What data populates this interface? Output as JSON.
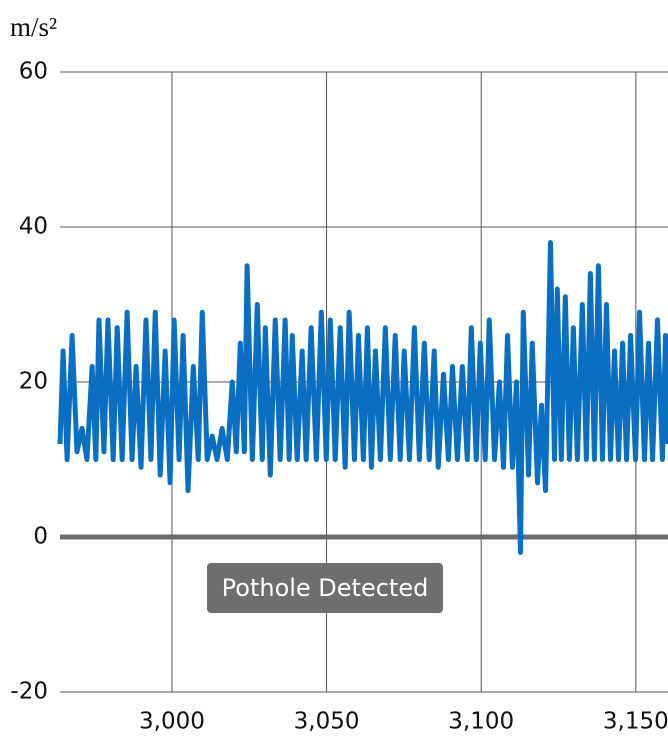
{
  "chart_data": {
    "type": "line",
    "y_unit": "m/s²",
    "annotation": "Pothole Detected",
    "color": "#0a6fc2",
    "grid": true,
    "xlim": [
      2963.8,
      3160.4
    ],
    "ylim": [
      -20,
      60
    ],
    "xticks": [
      {
        "value": 3000,
        "label": "3,000"
      },
      {
        "value": 3050,
        "label": "3,050"
      },
      {
        "value": 3100,
        "label": "3,100"
      },
      {
        "value": 3150,
        "label": "3,150"
      }
    ],
    "yticks": [
      60,
      40,
      20,
      0,
      -20
    ],
    "x": [
      2963.8,
      2964.8,
      2966.1,
      2967.7,
      2969.3,
      2970.9,
      2972.5,
      2974.2,
      2975.4,
      2976.4,
      2978.0,
      2979.3,
      2981.0,
      2982.3,
      2983.9,
      2985.5,
      2987.1,
      2988.4,
      2990.0,
      2991.6,
      2993.2,
      2994.6,
      2996.2,
      2997.8,
      2999.4,
      3000.7,
      3002.3,
      3003.6,
      3005.2,
      3006.9,
      3008.5,
      3009.8,
      3011.4,
      3013.0,
      3014.6,
      3016.2,
      3017.9,
      3019.5,
      3020.8,
      3022.1,
      3023.4,
      3024.3,
      3026.0,
      3027.6,
      3029.2,
      3030.2,
      3031.8,
      3033.4,
      3035.0,
      3036.6,
      3037.9,
      3038.9,
      3040.5,
      3042.1,
      3043.4,
      3045.0,
      3046.7,
      3048.3,
      3049.9,
      3051.2,
      3052.8,
      3054.4,
      3056.0,
      3057.3,
      3059.0,
      3060.3,
      3061.9,
      3063.2,
      3064.5,
      3065.8,
      3067.4,
      3069.0,
      3070.6,
      3072.2,
      3073.8,
      3075.1,
      3076.8,
      3078.4,
      3080.0,
      3081.6,
      3083.2,
      3084.8,
      3086.1,
      3087.8,
      3089.4,
      3090.7,
      3092.3,
      3093.9,
      3095.5,
      3096.8,
      3098.4,
      3099.7,
      3101.3,
      3102.6,
      3104.3,
      3105.9,
      3107.2,
      3108.5,
      3110.1,
      3111.4,
      3112.7,
      3113.6,
      3115.3,
      3116.5,
      3118.2,
      3119.5,
      3120.8,
      3122.4,
      3123.7,
      3124.6,
      3125.9,
      3127.2,
      3128.5,
      3129.8,
      3131.1,
      3132.7,
      3134.0,
      3135.3,
      3136.6,
      3137.9,
      3139.2,
      3140.5,
      3141.8,
      3143.1,
      3144.4,
      3145.7,
      3147.0,
      3148.3,
      3149.9,
      3151.2,
      3152.8,
      3154.1,
      3155.4,
      3157.0,
      3158.6,
      3159.6,
      3160.4
    ],
    "values": [
      12,
      24,
      10,
      26,
      11,
      14,
      10,
      22,
      10,
      28,
      11,
      28,
      10,
      27,
      10,
      29,
      10,
      22,
      9,
      28,
      10,
      29,
      8,
      24,
      7,
      28,
      10,
      26,
      6,
      22,
      10,
      29,
      10,
      13,
      10,
      14,
      10,
      20,
      11,
      25,
      11,
      35,
      10,
      30,
      10,
      27,
      8,
      28,
      10,
      28,
      10,
      26,
      10,
      24,
      10,
      27,
      10,
      29,
      10,
      28,
      10,
      27,
      9,
      29,
      10,
      26,
      10,
      27,
      9,
      24,
      10,
      27,
      10,
      26,
      10,
      24,
      10,
      27,
      10,
      25,
      10,
      24,
      9,
      21,
      10,
      22,
      10,
      22,
      10,
      27,
      10,
      25,
      10,
      28,
      10,
      20,
      9,
      26,
      9,
      20,
      -2,
      29,
      8,
      25,
      7,
      17,
      6,
      38,
      10,
      32,
      10,
      31,
      10,
      27,
      10,
      30,
      10,
      34,
      10,
      35,
      10,
      30,
      10,
      24,
      10,
      25,
      10,
      26,
      10,
      29,
      10,
      25,
      10,
      28,
      10,
      26,
      12
    ]
  }
}
